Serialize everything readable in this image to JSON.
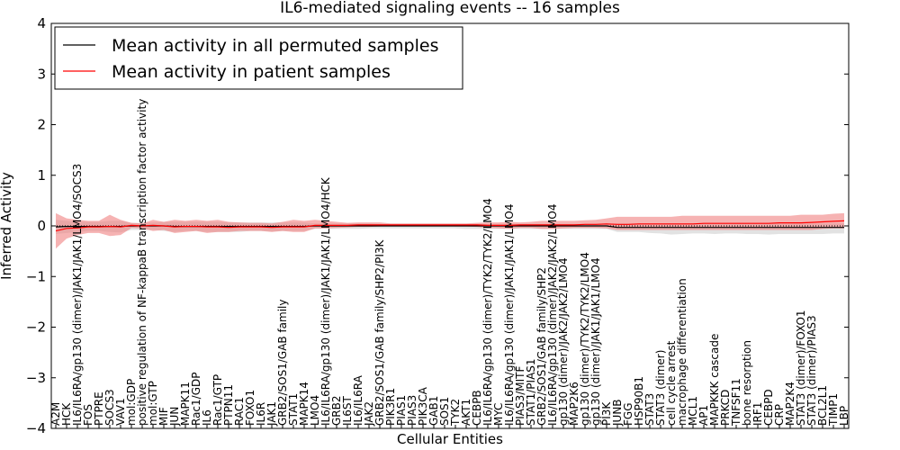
{
  "chart_data": {
    "type": "line",
    "title": "IL6-mediated signaling events -- 16 samples",
    "xlabel": "Cellular Entities",
    "ylabel": "Inferred Activity",
    "ylim": [
      -4,
      4
    ],
    "yticks": [
      -4,
      -3,
      -2,
      -1,
      0,
      1,
      2,
      3,
      4
    ],
    "grid": false,
    "legend_position": "top-left",
    "colors": {
      "permuted_line": "#000000",
      "patient_line": "#ff0000",
      "permuted_band": "#d3d3d3",
      "patient_band": "#f08080",
      "axes": "#000000",
      "zero_line": "#000000"
    },
    "categories": [
      "A2M",
      "HCK",
      "IL6/IL6RA/gp130 (dimer)/JAK1/JAK1/LMO4/SOCS3",
      "FOS",
      "PTPRE",
      "SOCS3",
      "VAV1",
      "mol:GDP",
      "positive regulation of NF-kappaB transcription factor activity",
      "mol:GTP",
      "MIF",
      "JUN",
      "MAPK11",
      "Rac1/GDP",
      "IL6",
      "Rac1/GTP",
      "PTPN11",
      "RAC1",
      "FOXO1",
      "IL6R",
      "JAK1",
      "GRB2/SOS1/GAB family",
      "STAT1",
      "MAPK14",
      "LMO4",
      "IL6/IL6RA/gp130 (dimer)/JAK1/JAK1/LMO4/HCK",
      "GRB2",
      "IL6ST",
      "IL6/IL6RA",
      "JAK2",
      "GRB2/SOS1/GAB family/SHP2/PI3K",
      "PIK3R1",
      "PIAS1",
      "PIAS3",
      "PIK3CA",
      "GAB1",
      "SOS1",
      "TYK2",
      "AKT1",
      "CEBPB",
      "IL6/IL6RA/gp130 (dimer)/TYK2/TYK2/LMO4",
      "MYC",
      "IL6/IL6RA/gp130 (dimer)/JAK1/JAK1/LMO4",
      "PIAS3/MITF",
      "STAT1/PIAS1",
      "GRB2/SOS1/GAB family/SHP2",
      "IL6/IL6RA/gp130 (dimer)/JAK2/JAK2/LMO4",
      "gp130 (dimer)/JAK2/JAK2/LMO4",
      "MAP2K6",
      "gp130 (dimer)/TYK2/TYK2/LMO4",
      "gp130 (dimer)/JAK1/JAK1/LMO4",
      "PI3K",
      "JUNB",
      "FGG",
      "HSP90B1",
      "STAT3",
      "STAT3 (dimer)",
      "cell cycle arrest",
      "macrophage differentiation",
      "MCL1",
      "AP1",
      "MAPKKK cascade",
      "PRKCD",
      "TNFSF11",
      "bone resorption",
      "IRF1",
      "CEBPD",
      "CRP",
      "MAP2K4",
      "STAT3 (dimer)/FOXO1",
      "STAT3 (dimer)/PIAS3",
      "BCL2L1",
      "TIMP1",
      "LBP"
    ],
    "series": [
      {
        "name": "Mean activity in all permuted samples",
        "values": [
          -0.02,
          -0.01,
          -0.01,
          -0.01,
          -0.01,
          -0.01,
          -0.01,
          0,
          0,
          0,
          0,
          -0.01,
          -0.01,
          -0.01,
          -0.01,
          -0.01,
          -0.01,
          -0.01,
          -0.01,
          -0.01,
          -0.01,
          -0.01,
          -0.01,
          -0.01,
          0,
          0,
          0,
          0,
          0,
          0,
          0,
          0,
          0,
          0,
          0,
          0,
          0,
          0,
          0,
          0,
          0,
          0,
          0,
          0,
          0,
          0,
          0,
          0,
          0,
          0,
          0,
          0,
          -0.03,
          -0.03,
          -0.03,
          -0.03,
          -0.03,
          -0.03,
          -0.03,
          -0.03,
          -0.03,
          -0.03,
          -0.03,
          -0.03,
          -0.03,
          -0.03,
          -0.03,
          -0.03,
          -0.03,
          -0.03,
          -0.03,
          -0.03,
          -0.03,
          -0.03
        ],
        "band_upper": [
          0.12,
          0.1,
          0.08,
          0.08,
          0.08,
          0.1,
          0.1,
          0.06,
          0.06,
          0.07,
          0.08,
          0.08,
          0.08,
          0.08,
          0.08,
          0.08,
          0.07,
          0.07,
          0.07,
          0.07,
          0.07,
          0.07,
          0.07,
          0.07,
          0.05,
          0.05,
          0.05,
          0.05,
          0.05,
          0.05,
          0.04,
          0.04,
          0.04,
          0.04,
          0.04,
          0.04,
          0.04,
          0.04,
          0.04,
          0.04,
          0.04,
          0.04,
          0.04,
          0.04,
          0.04,
          0.04,
          0.04,
          0.04,
          0.04,
          0.04,
          0.04,
          0.04,
          0.05,
          0.05,
          0.05,
          0.05,
          0.05,
          0.05,
          0.05,
          0.05,
          0.05,
          0.05,
          0.05,
          0.05,
          0.05,
          0.05,
          0.05,
          0.05,
          0.05,
          0.05,
          0.05,
          0.05,
          0.05,
          0.05
        ],
        "band_lower": [
          -0.16,
          -0.14,
          -0.12,
          -0.1,
          -0.1,
          -0.12,
          -0.13,
          -0.08,
          -0.08,
          -0.08,
          -0.1,
          -0.12,
          -0.1,
          -0.1,
          -0.12,
          -0.12,
          -0.12,
          -0.12,
          -0.1,
          -0.1,
          -0.11,
          -0.1,
          -0.1,
          -0.1,
          -0.06,
          -0.06,
          -0.06,
          -0.06,
          -0.06,
          -0.05,
          -0.05,
          -0.05,
          -0.05,
          -0.05,
          -0.05,
          -0.05,
          -0.05,
          -0.05,
          -0.06,
          -0.06,
          -0.06,
          -0.06,
          -0.06,
          -0.06,
          -0.06,
          -0.06,
          -0.06,
          -0.06,
          -0.06,
          -0.06,
          -0.06,
          -0.06,
          -0.12,
          -0.12,
          -0.12,
          -0.14,
          -0.15,
          -0.17,
          -0.16,
          -0.15,
          -0.15,
          -0.16,
          -0.15,
          -0.15,
          -0.16,
          -0.16,
          -0.17,
          -0.16,
          -0.16,
          -0.16,
          -0.16,
          -0.16,
          -0.15,
          -0.15
        ]
      },
      {
        "name": "Mean activity in patient samples",
        "values": [
          -0.1,
          -0.05,
          -0.04,
          -0.02,
          -0.02,
          -0.01,
          -0.02,
          0.01,
          0,
          0.01,
          0,
          -0.02,
          -0.01,
          -0.01,
          -0.02,
          -0.02,
          -0.03,
          -0.02,
          -0.02,
          -0.02,
          -0.03,
          -0.02,
          -0.02,
          -0.02,
          0.01,
          0.01,
          0.01,
          0.01,
          0.02,
          0.02,
          0.02,
          0.02,
          0.02,
          0.02,
          0.02,
          0.02,
          0.02,
          0.02,
          0.02,
          0.02,
          0.01,
          0.01,
          0.01,
          0.02,
          0.02,
          0.02,
          0.02,
          0.02,
          0.02,
          0.03,
          0.03,
          0.04,
          0.03,
          0.03,
          0.04,
          0.04,
          0.04,
          0.04,
          0.04,
          0.04,
          0.05,
          0.05,
          0.05,
          0.05,
          0.05,
          0.05,
          0.05,
          0.06,
          0.06,
          0.06,
          0.07,
          0.08,
          0.09,
          0.1
        ],
        "band_upper": [
          0.25,
          0.15,
          0.12,
          0.1,
          0.1,
          0.22,
          0.12,
          0.06,
          0.05,
          0.12,
          0.08,
          0.12,
          0.1,
          0.12,
          0.1,
          0.12,
          0.08,
          0.07,
          0.06,
          0.06,
          0.05,
          0.08,
          0.12,
          0.1,
          0.12,
          0.1,
          0.08,
          0.06,
          0.07,
          0.07,
          0.07,
          0.05,
          0.05,
          0.05,
          0.05,
          0.05,
          0.05,
          0.05,
          0.05,
          0.06,
          0.07,
          0.07,
          0.08,
          0.07,
          0.08,
          0.1,
          0.1,
          0.1,
          0.1,
          0.11,
          0.12,
          0.15,
          0.18,
          0.18,
          0.18,
          0.18,
          0.18,
          0.18,
          0.2,
          0.2,
          0.2,
          0.2,
          0.2,
          0.2,
          0.2,
          0.2,
          0.2,
          0.2,
          0.2,
          0.22,
          0.22,
          0.22,
          0.24,
          0.25
        ],
        "band_lower": [
          -0.45,
          -0.25,
          -0.18,
          -0.14,
          -0.14,
          -0.2,
          -0.18,
          -0.04,
          -0.05,
          -0.1,
          -0.08,
          -0.14,
          -0.12,
          -0.1,
          -0.14,
          -0.12,
          -0.12,
          -0.1,
          -0.1,
          -0.1,
          -0.12,
          -0.1,
          -0.12,
          -0.12,
          -0.05,
          -0.05,
          -0.04,
          -0.03,
          -0.02,
          -0.02,
          -0.01,
          0,
          0,
          0,
          0,
          0,
          0,
          -0.01,
          -0.01,
          -0.02,
          -0.04,
          -0.05,
          -0.06,
          -0.04,
          -0.04,
          -0.06,
          -0.06,
          -0.05,
          -0.04,
          -0.04,
          -0.04,
          -0.05,
          -0.08,
          -0.08,
          -0.08,
          -0.08,
          -0.08,
          -0.08,
          -0.08,
          -0.08,
          -0.08,
          -0.08,
          -0.08,
          -0.08,
          -0.08,
          -0.08,
          -0.08,
          -0.08,
          -0.08,
          -0.08,
          -0.08,
          -0.06,
          -0.05,
          -0.05
        ]
      }
    ]
  }
}
